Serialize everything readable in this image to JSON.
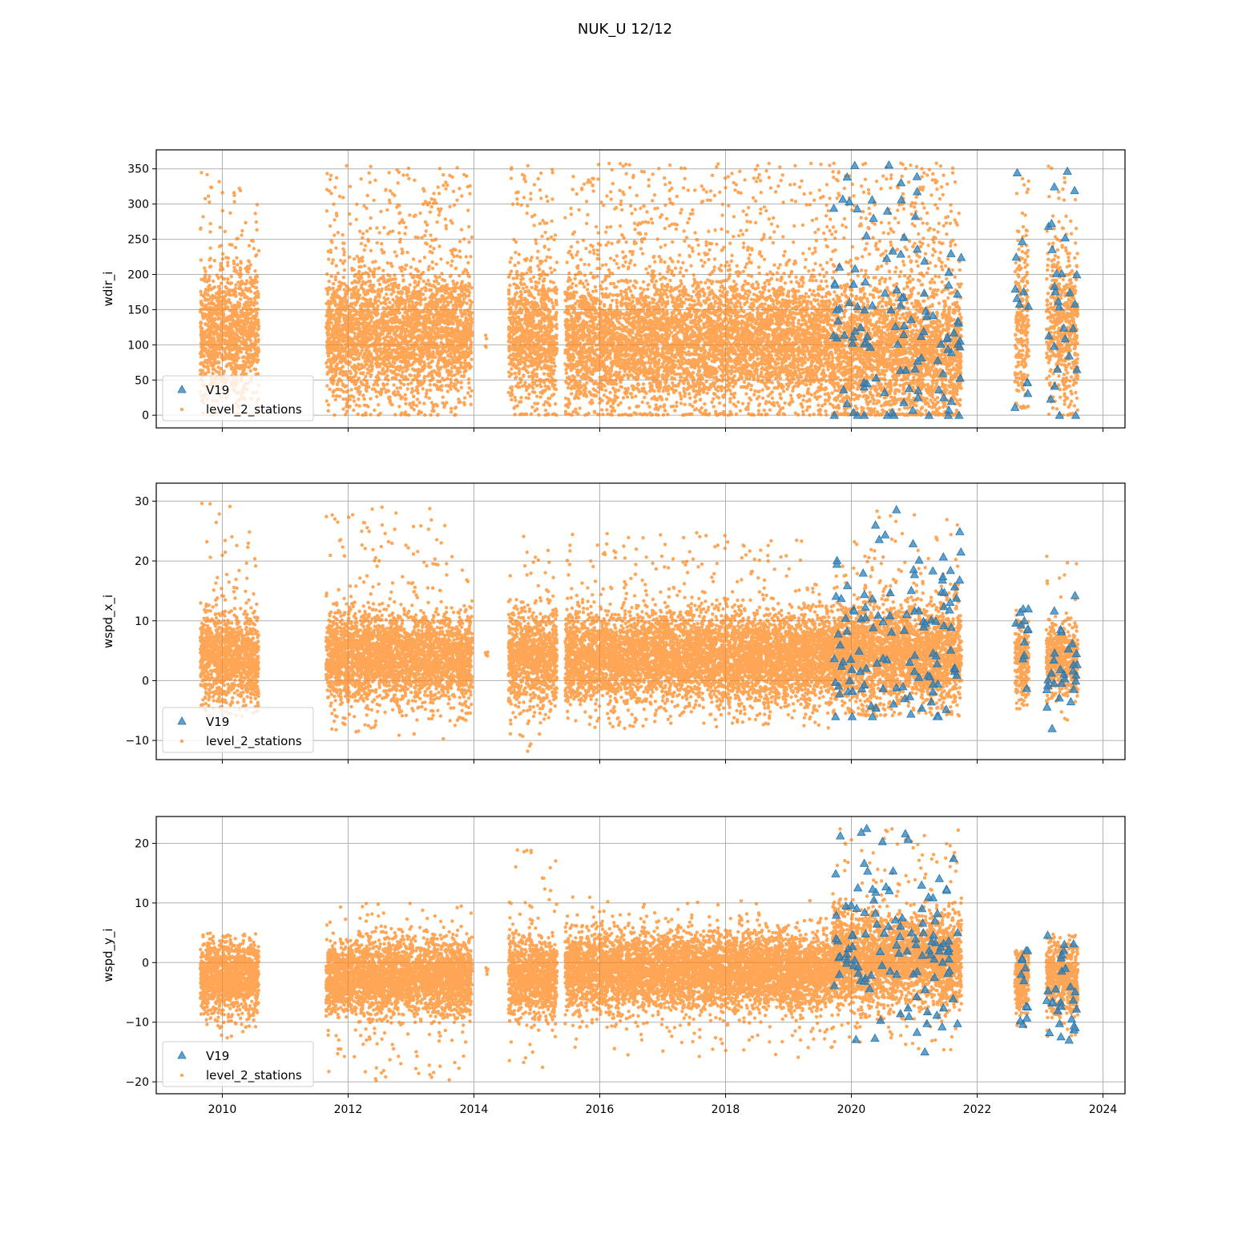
{
  "figure": {
    "title": "NUK_U 12/12"
  },
  "colors": {
    "v19": "#1f77b4",
    "level_2_stations": "#ff7f0e",
    "grid": "#b0b0b0"
  },
  "chart_data": [
    {
      "type": "scatter",
      "ylabel": "wdir_i",
      "xlim": [
        2008.95,
        2024.35
      ],
      "ylim": [
        -18,
        377
      ],
      "yticks": [
        0,
        50,
        100,
        150,
        200,
        250,
        300,
        350
      ],
      "xticks": [
        2010,
        2012,
        2014,
        2016,
        2018,
        2020,
        2022,
        2024
      ],
      "xtick_labels_visible": false,
      "grid": true,
      "legend": {
        "placement": "lower-left",
        "entries": [
          "V19",
          "level_2_stations"
        ]
      },
      "segments": [
        {
          "x0": 2009.65,
          "x1": 2010.58,
          "center": 115,
          "spread": 45,
          "bg": [
            0,
            355
          ],
          "bgfrac": 0.12,
          "density": 600,
          "v19": false
        },
        {
          "x0": 2011.65,
          "x1": 2013.97,
          "center": 115,
          "spread": 45,
          "bg": [
            0,
            355
          ],
          "bgfrac": 0.15,
          "density": 600,
          "v19": false
        },
        {
          "x0": 2014.18,
          "x1": 2014.22,
          "center": 105,
          "spread": 10,
          "bg": [
            95,
            115
          ],
          "bgfrac": 0,
          "density": 40,
          "v19": false
        },
        {
          "x0": 2014.55,
          "x1": 2015.32,
          "center": 115,
          "spread": 45,
          "bg": [
            0,
            355
          ],
          "bgfrac": 0.15,
          "density": 600,
          "v19": false
        },
        {
          "x0": 2015.45,
          "x1": 2019.7,
          "center": 105,
          "spread": 45,
          "bg": [
            0,
            358
          ],
          "bgfrac": 0.14,
          "density": 600,
          "v19": false
        },
        {
          "x0": 2019.7,
          "x1": 2021.75,
          "center": 85,
          "spread": 50,
          "bg": [
            0,
            358
          ],
          "bgfrac": 0.2,
          "density": 600,
          "v19": true
        },
        {
          "x0": 2022.6,
          "x1": 2022.82,
          "center": 130,
          "spread": 60,
          "bg": [
            10,
            345
          ],
          "bgfrac": 0.1,
          "density": 500,
          "v19": true
        },
        {
          "x0": 2023.1,
          "x1": 2023.6,
          "center": 125,
          "spread": 55,
          "bg": [
            0,
            358
          ],
          "bgfrac": 0.12,
          "density": 500,
          "v19": true
        }
      ]
    },
    {
      "type": "scatter",
      "ylabel": "wspd_x_i",
      "xlim": [
        2008.95,
        2024.35
      ],
      "ylim": [
        -13.2,
        33
      ],
      "yticks": [
        -10,
        0,
        10,
        20,
        30
      ],
      "xticks": [
        2010,
        2012,
        2014,
        2016,
        2018,
        2020,
        2022,
        2024
      ],
      "xtick_labels_visible": false,
      "grid": true,
      "legend": {
        "placement": "lower-left",
        "entries": [
          "V19",
          "level_2_stations"
        ]
      },
      "segments": [
        {
          "x0": 2009.65,
          "x1": 2010.58,
          "center": 4,
          "spread": 3.8,
          "bg": [
            -6,
            30
          ],
          "bgfrac": 0.05,
          "density": 600,
          "v19": false
        },
        {
          "x0": 2011.65,
          "x1": 2013.97,
          "center": 4,
          "spread": 3.8,
          "bg": [
            -10,
            29
          ],
          "bgfrac": 0.05,
          "density": 600,
          "v19": false
        },
        {
          "x0": 2014.18,
          "x1": 2014.22,
          "center": 4.3,
          "spread": 0.4,
          "bg": [
            3.5,
            5
          ],
          "bgfrac": 0,
          "density": 40,
          "v19": false
        },
        {
          "x0": 2014.55,
          "x1": 2015.32,
          "center": 4,
          "spread": 4,
          "bg": [
            -12,
            26
          ],
          "bgfrac": 0.05,
          "density": 600,
          "v19": false
        },
        {
          "x0": 2015.45,
          "x1": 2019.7,
          "center": 4,
          "spread": 3.8,
          "bg": [
            -8,
            25
          ],
          "bgfrac": 0.05,
          "density": 600,
          "v19": false
        },
        {
          "x0": 2019.7,
          "x1": 2021.75,
          "center": 4.5,
          "spread": 4.2,
          "bg": [
            -6,
            29
          ],
          "bgfrac": 0.06,
          "density": 600,
          "v19": true
        },
        {
          "x0": 2022.6,
          "x1": 2022.82,
          "center": 3,
          "spread": 3.5,
          "bg": [
            -6,
            12
          ],
          "bgfrac": 0.05,
          "density": 500,
          "v19": true
        },
        {
          "x0": 2023.1,
          "x1": 2023.6,
          "center": 3.5,
          "spread": 3,
          "bg": [
            -8,
            21
          ],
          "bgfrac": 0.05,
          "density": 500,
          "v19": true
        }
      ]
    },
    {
      "type": "scatter",
      "ylabel": "wspd_y_i",
      "xlim": [
        2008.95,
        2024.35
      ],
      "ylim": [
        -22,
        24.5
      ],
      "yticks": [
        -20,
        -10,
        0,
        10,
        20
      ],
      "xticks": [
        2010,
        2012,
        2014,
        2016,
        2018,
        2020,
        2022,
        2024
      ],
      "xtick_labels_visible": true,
      "grid": true,
      "legend": {
        "placement": "lower-left",
        "entries": [
          "V19",
          "level_2_stations"
        ]
      },
      "segments": [
        {
          "x0": 2009.65,
          "x1": 2010.58,
          "center": -2.5,
          "spread": 3,
          "bg": [
            -13,
            5
          ],
          "bgfrac": 0.05,
          "density": 600,
          "v19": false
        },
        {
          "x0": 2011.65,
          "x1": 2013.97,
          "center": -2.5,
          "spread": 3,
          "bg": [
            -20,
            10
          ],
          "bgfrac": 0.05,
          "density": 600,
          "v19": false
        },
        {
          "x0": 2014.18,
          "x1": 2014.22,
          "center": -1,
          "spread": 0.8,
          "bg": [
            -2.5,
            0
          ],
          "bgfrac": 0,
          "density": 40,
          "v19": false
        },
        {
          "x0": 2014.55,
          "x1": 2015.32,
          "center": -2.5,
          "spread": 3.2,
          "bg": [
            -18,
            19
          ],
          "bgfrac": 0.05,
          "density": 600,
          "v19": false
        },
        {
          "x0": 2015.45,
          "x1": 2019.7,
          "center": -1.5,
          "spread": 3.2,
          "bg": [
            -16,
            11
          ],
          "bgfrac": 0.05,
          "density": 600,
          "v19": false
        },
        {
          "x0": 2019.7,
          "x1": 2021.75,
          "center": 0.5,
          "spread": 4,
          "bg": [
            -15,
            22.5
          ],
          "bgfrac": 0.06,
          "density": 600,
          "v19": true
        },
        {
          "x0": 2022.6,
          "x1": 2022.82,
          "center": -3,
          "spread": 3,
          "bg": [
            -11,
            2
          ],
          "bgfrac": 0.05,
          "density": 500,
          "v19": true
        },
        {
          "x0": 2023.1,
          "x1": 2023.6,
          "center": -2.5,
          "spread": 3,
          "bg": [
            -13,
            5
          ],
          "bgfrac": 0.05,
          "density": 500,
          "v19": true
        }
      ]
    }
  ]
}
